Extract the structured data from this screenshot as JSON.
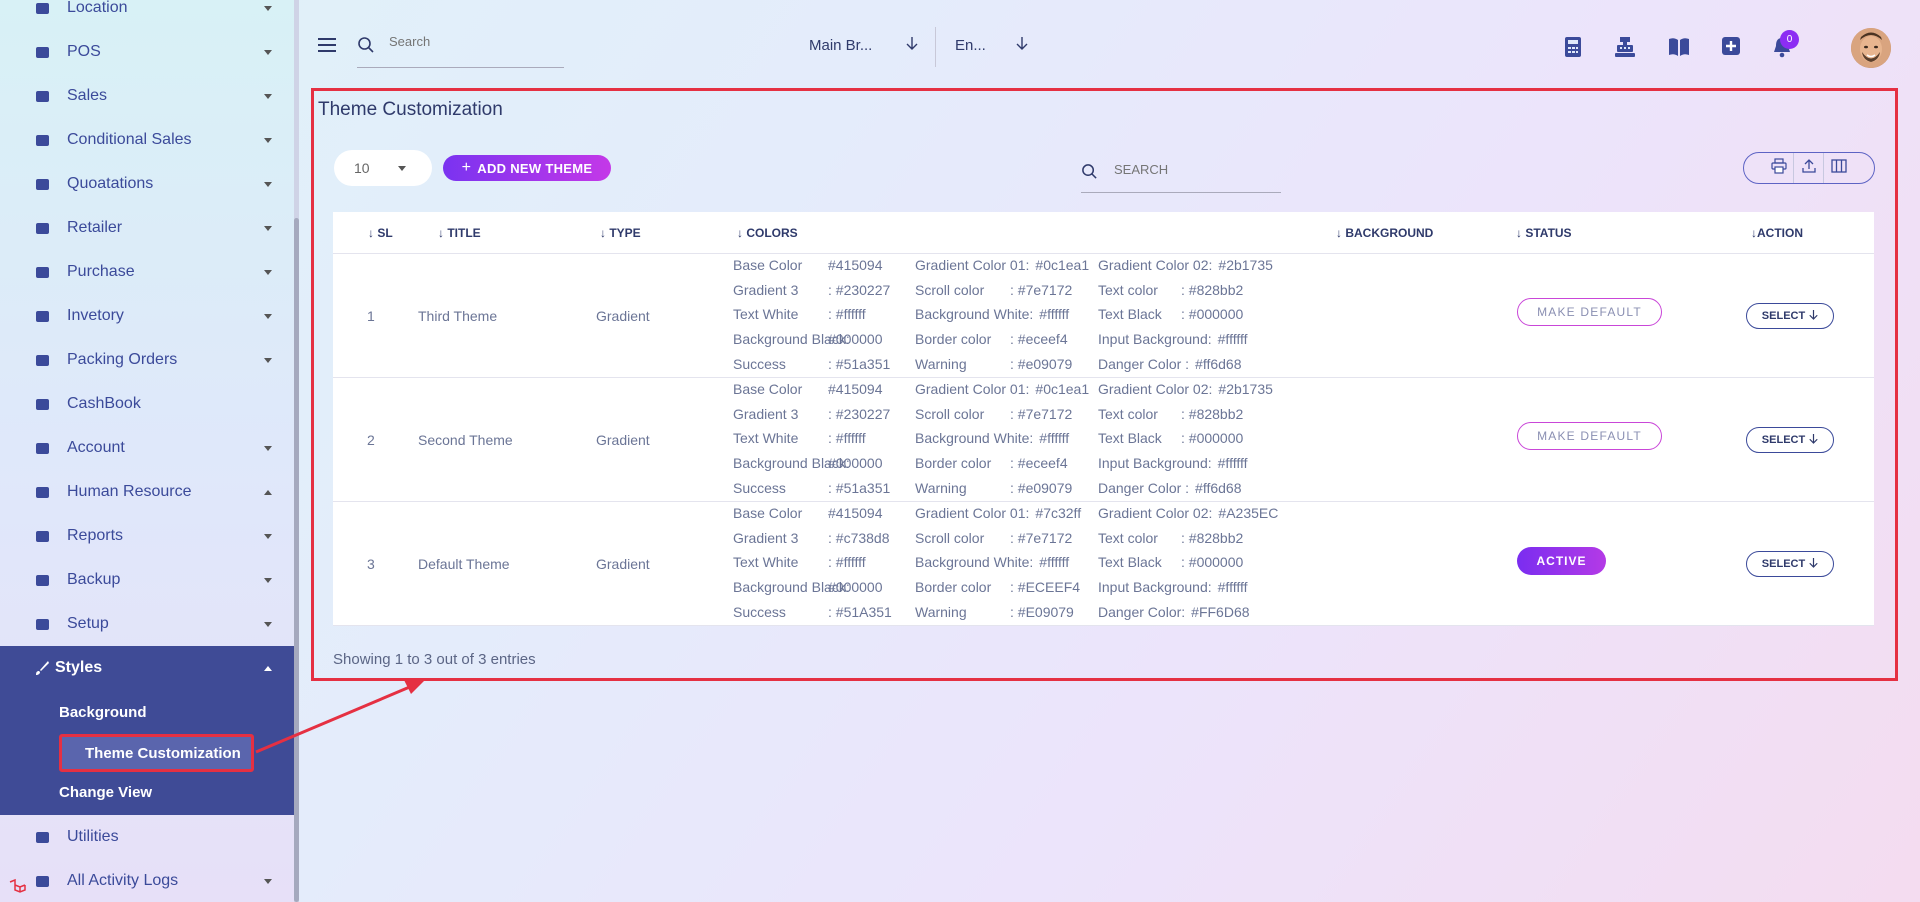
{
  "sidebar": {
    "items": [
      {
        "label": "Location",
        "icon": "location-arrow-icon"
      },
      {
        "label": "POS",
        "icon": "cash-register-icon"
      },
      {
        "label": "Sales",
        "icon": "inbox-icon"
      },
      {
        "label": "Conditional Sales",
        "icon": "hammer-icon"
      },
      {
        "label": "Quoatations",
        "icon": "mug-icon"
      },
      {
        "label": "Retailer",
        "icon": "person-dolly-icon"
      },
      {
        "label": "Purchase",
        "icon": "store-icon"
      },
      {
        "label": "Invetory",
        "icon": "warehouse-icon"
      },
      {
        "label": "Packing Orders",
        "icon": "users-icon"
      },
      {
        "label": "CashBook",
        "icon": "book-icon"
      },
      {
        "label": "Account",
        "icon": "calculator-icon"
      },
      {
        "label": "Human Resource",
        "icon": "users-icon"
      },
      {
        "label": "Reports",
        "icon": "diagram-icon"
      },
      {
        "label": "Backup",
        "icon": "cloud-download-icon"
      },
      {
        "label": "Setup",
        "icon": "gear-icon"
      }
    ],
    "styles": {
      "label": "Styles",
      "sub": [
        "Background",
        "Theme Customization",
        "Change View"
      ]
    },
    "after": [
      {
        "label": "Utilities",
        "icon": "drive-icon"
      },
      {
        "label": "All Activity Logs",
        "icon": "activity-icon"
      }
    ]
  },
  "topbar": {
    "search_placeholder": "Search",
    "branch": "Main Br...",
    "language": "En...",
    "notif_count": "0"
  },
  "page": {
    "title": "Theme Customization",
    "page_length": "10",
    "add_label": "ADD NEW THEME",
    "search_placeholder": "SEARCH",
    "entries": "Showing 1 to 3 out of 3 entries"
  },
  "table": {
    "headers": {
      "sl": "SL",
      "title": "TITLE",
      "type": "TYPE",
      "colors": "COLORS",
      "background": "BACKGROUND",
      "status": "STATUS",
      "action": "ACTION"
    },
    "rows": [
      {
        "sl": "1",
        "title": "Third Theme",
        "type": "Gradient",
        "status": "MAKE DEFAULT",
        "action": "SELECT",
        "colors": [
          [
            "Base Color",
            "#415094",
            "Gradient Color 01:",
            "#0c1ea1",
            "Gradient Color 02:",
            "#2b1735"
          ],
          [
            "Gradient 3",
            ": #230227",
            "Scroll color",
            ": #7e7172",
            "Text color",
            ": #828bb2"
          ],
          [
            "Text White",
            ": #ffffff",
            "Background White:",
            "#ffffff",
            "Text Black",
            ": #000000"
          ],
          [
            "Background Black:",
            "#000000",
            "Border color",
            ": #eceef4",
            "Input Background:",
            "#ffffff"
          ],
          [
            "Success",
            ": #51a351",
            "Warning",
            ": #e09079",
            "Danger Color :",
            "#ff6d68"
          ]
        ]
      },
      {
        "sl": "2",
        "title": "Second Theme",
        "type": "Gradient",
        "status": "MAKE DEFAULT",
        "action": "SELECT",
        "colors": [
          [
            "Base Color",
            "#415094",
            "Gradient Color 01:",
            "#0c1ea1",
            "Gradient Color 02:",
            "#2b1735"
          ],
          [
            "Gradient 3",
            ": #230227",
            "Scroll color",
            ": #7e7172",
            "Text color",
            ": #828bb2"
          ],
          [
            "Text White",
            ": #ffffff",
            "Background White:",
            "#ffffff",
            "Text Black",
            ": #000000"
          ],
          [
            "Background Black:",
            "#000000",
            "Border color",
            ": #eceef4",
            "Input Background:",
            "#ffffff"
          ],
          [
            "Success",
            ": #51a351",
            "Warning",
            ": #e09079",
            "Danger Color :",
            "#ff6d68"
          ]
        ]
      },
      {
        "sl": "3",
        "title": "Default Theme",
        "type": "Gradient",
        "status": "ACTIVE",
        "action": "SELECT",
        "colors": [
          [
            "Base Color",
            "#415094",
            "Gradient Color 01:",
            "#7c32ff",
            "Gradient Color 02:",
            "#A235EC"
          ],
          [
            "Gradient 3",
            ": #c738d8",
            "Scroll color",
            ": #7e7172",
            "Text color",
            ": #828bb2"
          ],
          [
            "Text White",
            ": #ffffff",
            "Background White:",
            "#ffffff",
            "Text Black",
            ": #000000"
          ],
          [
            "Background Black:",
            "#000000",
            "Border color",
            ": #ECEEF4",
            "Input Background:",
            "#ffffff"
          ],
          [
            "Success",
            ": #51A351",
            "Warning",
            ": #E09079",
            "Danger Color:",
            "#FF6D68"
          ]
        ]
      }
    ]
  },
  "colors": {
    "accent": "#8c2df3",
    "sidebar_active": "#3f4b96",
    "highlight": "#e53042"
  }
}
